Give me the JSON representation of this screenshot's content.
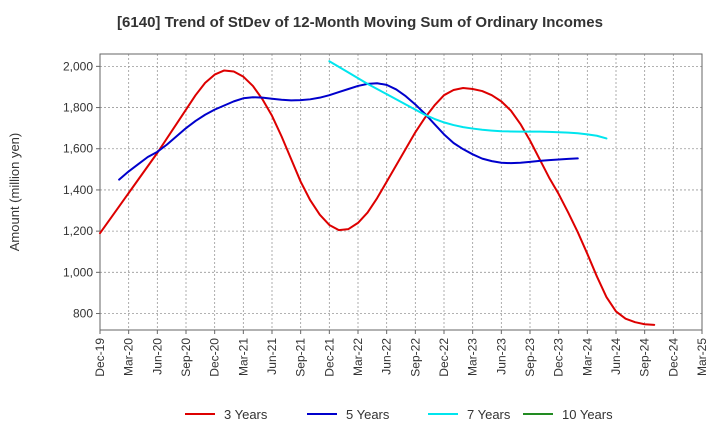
{
  "chart_data": {
    "type": "line",
    "title": "[6140]  Trend of StDev of 12-Month Moving Sum of Ordinary Incomes",
    "xlabel": "",
    "ylabel": "Amount (million yen)",
    "ylim": [
      720,
      2060
    ],
    "yticks": [
      800,
      1000,
      1200,
      1400,
      1600,
      1800,
      2000
    ],
    "ytick_labels": [
      "800",
      "1,000",
      "1,200",
      "1,400",
      "1,600",
      "1,800",
      "2,000"
    ],
    "x_range": [
      0,
      63
    ],
    "xticks": [
      0,
      3,
      6,
      9,
      12,
      15,
      18,
      21,
      24,
      27,
      30,
      33,
      36,
      39,
      42,
      45,
      48,
      51,
      54,
      57,
      60,
      63
    ],
    "categories": [
      "Dec-19",
      "Mar-20",
      "Jun-20",
      "Sep-20",
      "Dec-20",
      "Mar-21",
      "Jun-21",
      "Sep-21",
      "Dec-21",
      "Mar-22",
      "Jun-22",
      "Sep-22",
      "Dec-22",
      "Mar-23",
      "Jun-23",
      "Sep-23",
      "Dec-23",
      "Mar-24",
      "Jun-24",
      "Sep-24",
      "Dec-24",
      "Mar-25"
    ],
    "grid": true,
    "legend_position": "bottom",
    "series": [
      {
        "name": "3 Years",
        "color": "#dd0000",
        "points": [
          [
            0,
            1190
          ],
          [
            2,
            1320
          ],
          [
            4,
            1450
          ],
          [
            6,
            1580
          ],
          [
            8,
            1720
          ],
          [
            10,
            1860
          ],
          [
            11,
            1920
          ],
          [
            12,
            1960
          ],
          [
            13,
            1980
          ],
          [
            14,
            1975
          ],
          [
            15,
            1950
          ],
          [
            16,
            1905
          ],
          [
            17,
            1840
          ],
          [
            18,
            1760
          ],
          [
            19,
            1660
          ],
          [
            20,
            1550
          ],
          [
            21,
            1440
          ],
          [
            22,
            1350
          ],
          [
            23,
            1280
          ],
          [
            24,
            1230
          ],
          [
            25,
            1205
          ],
          [
            26,
            1210
          ],
          [
            27,
            1240
          ],
          [
            28,
            1290
          ],
          [
            29,
            1360
          ],
          [
            30,
            1440
          ],
          [
            31,
            1520
          ],
          [
            32,
            1600
          ],
          [
            33,
            1680
          ],
          [
            34,
            1750
          ],
          [
            35,
            1810
          ],
          [
            36,
            1860
          ],
          [
            37,
            1885
          ],
          [
            38,
            1895
          ],
          [
            39,
            1890
          ],
          [
            40,
            1880
          ],
          [
            41,
            1860
          ],
          [
            42,
            1830
          ],
          [
            43,
            1785
          ],
          [
            44,
            1720
          ],
          [
            45,
            1640
          ],
          [
            46,
            1550
          ],
          [
            47,
            1460
          ],
          [
            48,
            1380
          ],
          [
            49,
            1290
          ],
          [
            50,
            1195
          ],
          [
            51,
            1090
          ],
          [
            52,
            980
          ],
          [
            53,
            880
          ],
          [
            54,
            810
          ],
          [
            55,
            775
          ],
          [
            56,
            758
          ],
          [
            57,
            748
          ],
          [
            58,
            745
          ]
        ]
      },
      {
        "name": "5 Years",
        "color": "#0000cc",
        "points": [
          [
            2,
            1450
          ],
          [
            3,
            1490
          ],
          [
            4,
            1525
          ],
          [
            5,
            1560
          ],
          [
            6,
            1585
          ],
          [
            7,
            1620
          ],
          [
            8,
            1660
          ],
          [
            9,
            1700
          ],
          [
            10,
            1735
          ],
          [
            11,
            1765
          ],
          [
            12,
            1790
          ],
          [
            13,
            1810
          ],
          [
            14,
            1830
          ],
          [
            15,
            1845
          ],
          [
            16,
            1850
          ],
          [
            17,
            1848
          ],
          [
            18,
            1843
          ],
          [
            19,
            1838
          ],
          [
            20,
            1835
          ],
          [
            21,
            1836
          ],
          [
            22,
            1840
          ],
          [
            23,
            1848
          ],
          [
            24,
            1860
          ],
          [
            25,
            1875
          ],
          [
            26,
            1890
          ],
          [
            27,
            1905
          ],
          [
            28,
            1915
          ],
          [
            29,
            1918
          ],
          [
            30,
            1910
          ],
          [
            31,
            1888
          ],
          [
            32,
            1855
          ],
          [
            33,
            1815
          ],
          [
            34,
            1770
          ],
          [
            35,
            1720
          ],
          [
            36,
            1670
          ],
          [
            37,
            1628
          ],
          [
            38,
            1598
          ],
          [
            39,
            1573
          ],
          [
            40,
            1552
          ],
          [
            41,
            1540
          ],
          [
            42,
            1532
          ],
          [
            43,
            1530
          ],
          [
            44,
            1532
          ],
          [
            45,
            1536
          ],
          [
            46,
            1541
          ],
          [
            47,
            1545
          ],
          [
            48,
            1548
          ],
          [
            49,
            1551
          ],
          [
            50,
            1553
          ]
        ]
      },
      {
        "name": "7 Years",
        "color": "#00e5ee",
        "points": [
          [
            24,
            2025
          ],
          [
            26,
            1970
          ],
          [
            28,
            1915
          ],
          [
            30,
            1865
          ],
          [
            32,
            1815
          ],
          [
            34,
            1765
          ],
          [
            35,
            1745
          ],
          [
            36,
            1728
          ],
          [
            37,
            1715
          ],
          [
            38,
            1705
          ],
          [
            39,
            1698
          ],
          [
            40,
            1692
          ],
          [
            41,
            1688
          ],
          [
            42,
            1685
          ],
          [
            43,
            1684
          ],
          [
            44,
            1683
          ],
          [
            45,
            1683
          ],
          [
            46,
            1683
          ],
          [
            47,
            1682
          ],
          [
            48,
            1680
          ],
          [
            49,
            1678
          ],
          [
            50,
            1675
          ],
          [
            51,
            1670
          ],
          [
            52,
            1663
          ],
          [
            53,
            1650
          ]
        ]
      },
      {
        "name": "10 Years",
        "color": "#228b22",
        "points": []
      }
    ]
  }
}
